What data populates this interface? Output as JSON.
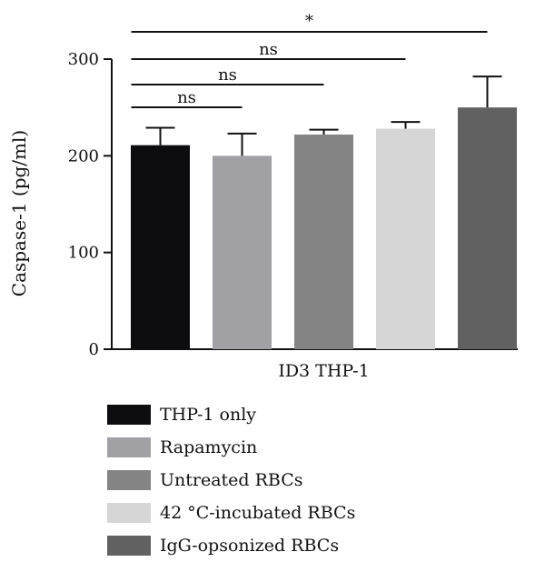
{
  "chart_data": {
    "type": "bar",
    "ylabel": "Caspase-1 (pg/ml)",
    "xlabel": "ID3 THP-1",
    "ylim": [
      0,
      300
    ],
    "yticks": [
      0,
      100,
      200,
      300
    ],
    "grid": false,
    "legend_position": "bottom",
    "series": [
      {
        "name": "THP-1 only",
        "value": 211,
        "error": 18,
        "color": "#0d0d0f"
      },
      {
        "name": "Rapamycin",
        "value": 200,
        "error": 23,
        "color": "#a1a1a5"
      },
      {
        "name": "Untreated RBCs",
        "value": 222,
        "error": 5,
        "color": "#848484"
      },
      {
        "name": "42 °C-incubated RBCs",
        "value": 228,
        "error": 7,
        "color": "#d6d6d6"
      },
      {
        "name": "IgG-opsonized RBCs",
        "value": 250,
        "error": 32,
        "color": "#616161"
      }
    ],
    "comparisons": [
      {
        "from": 0,
        "to": 1,
        "label": "ns"
      },
      {
        "from": 0,
        "to": 2,
        "label": "ns"
      },
      {
        "from": 0,
        "to": 3,
        "label": "ns"
      },
      {
        "from": 0,
        "to": 4,
        "label": "*"
      }
    ]
  }
}
